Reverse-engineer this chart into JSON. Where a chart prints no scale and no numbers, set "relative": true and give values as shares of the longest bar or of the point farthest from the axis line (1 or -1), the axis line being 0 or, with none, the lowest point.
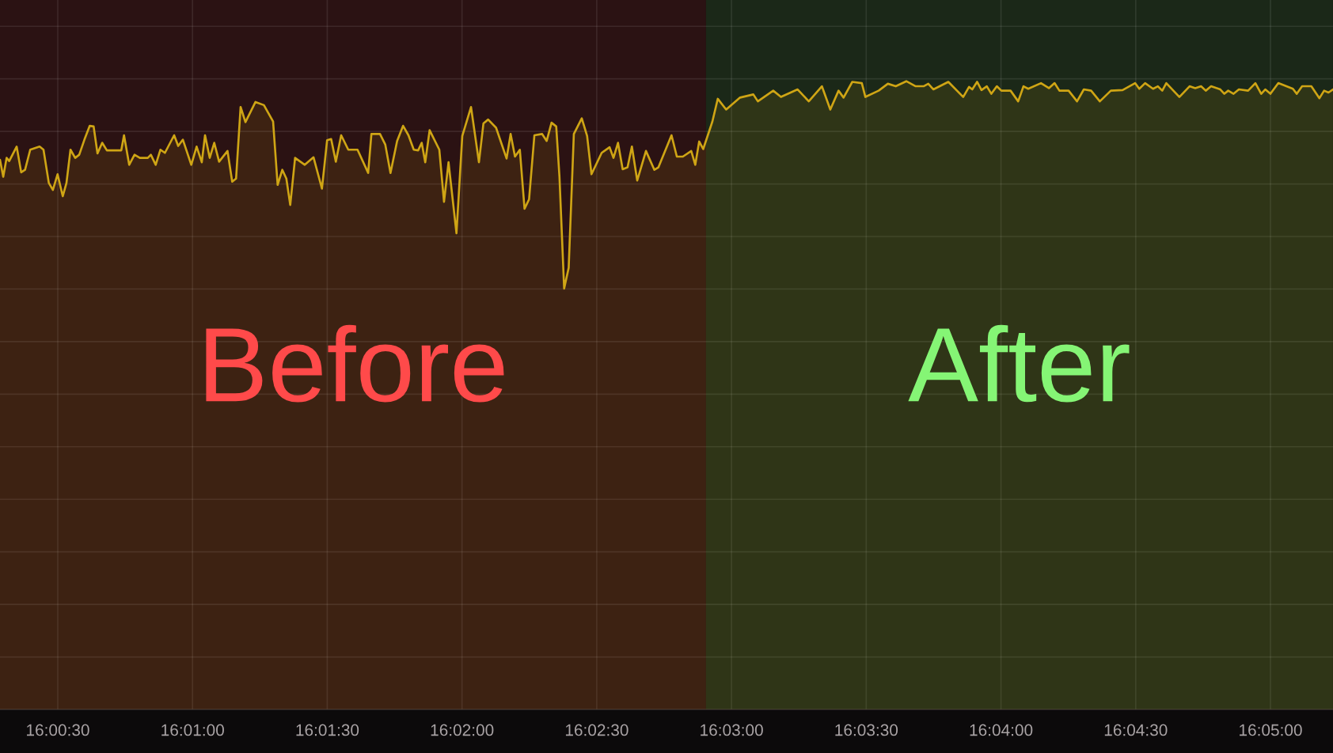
{
  "chart_data": {
    "type": "area",
    "relative": true,
    "xlim": [
      16.00476,
      16.0872
    ],
    "xticks": [
      {
        "value": 16.008333,
        "label": "16:00:30"
      },
      {
        "value": 16.016667,
        "label": "16:01:00"
      },
      {
        "value": 16.025,
        "label": "16:01:30"
      },
      {
        "value": 16.033333,
        "label": "16:02:00"
      },
      {
        "value": 16.041667,
        "label": "16:02:30"
      },
      {
        "value": 16.05,
        "label": "16:03:00"
      },
      {
        "value": 16.058333,
        "label": "16:03:30"
      },
      {
        "value": 16.066667,
        "label": "16:04:00"
      },
      {
        "value": 16.075,
        "label": "16:04:30"
      },
      {
        "value": 16.083333,
        "label": "16:05:00"
      }
    ],
    "grid": true,
    "bands": [
      {
        "axis": "x",
        "from": 16.00476,
        "to": 16.04842,
        "label": "Before",
        "color": "#ff4a4a"
      },
      {
        "axis": "x",
        "from": 16.04842,
        "to": 16.0872,
        "label": "After",
        "color": "#85f575"
      }
    ],
    "series": [
      {
        "color": "#cfa515",
        "x": [
          16.00476,
          16.00496,
          16.00517,
          16.00533,
          16.00579,
          16.00607,
          16.00631,
          16.00663,
          16.00721,
          16.00745,
          16.00778,
          16.00803,
          16.00832,
          16.00864,
          16.00887,
          16.00912,
          16.00941,
          16.00966,
          16.00998,
          16.01031,
          16.01055,
          16.01079,
          16.01108,
          16.01137,
          16.01226,
          16.01243,
          16.01275,
          16.01308,
          16.01341,
          16.0139,
          16.01409,
          16.01439,
          16.01468,
          16.01496,
          16.01553,
          16.01578,
          16.01607,
          16.01659,
          16.01692,
          16.01724,
          16.01744,
          16.01773,
          16.01801,
          16.01831,
          16.01883,
          16.01912,
          16.01936,
          16.01964,
          16.01994,
          16.02056,
          16.02108,
          16.02165,
          16.02193,
          16.02222,
          16.02247,
          16.02271,
          16.02301,
          16.02361,
          16.02415,
          16.02467,
          16.02499,
          16.02524,
          16.02553,
          16.02586,
          16.0263,
          16.02687,
          16.02753,
          16.02773,
          16.02826,
          16.02859,
          16.02891,
          16.02932,
          16.02969,
          16.03002,
          16.03035,
          16.03062,
          16.03084,
          16.03106,
          16.03133,
          16.03193,
          16.03222,
          16.0325,
          16.03299,
          16.03335,
          16.03389,
          16.03438,
          16.03466,
          16.03495,
          16.03544,
          16.03609,
          16.03634,
          16.03661,
          16.03691,
          16.0372,
          16.03748,
          16.03781,
          16.03829,
          16.03857,
          16.03887,
          16.03916,
          16.03936,
          16.03965,
          16.03993,
          16.04025,
          16.04074,
          16.04107,
          16.04134,
          16.04197,
          16.04246,
          16.0427,
          16.04298,
          16.04327,
          16.04357,
          16.04384,
          16.04417,
          16.04471,
          16.04523,
          16.04548,
          16.04629,
          16.04662,
          16.04699,
          16.04751,
          16.04776,
          16.048,
          16.04825,
          16.04882,
          16.04915,
          16.04967,
          16.05053,
          16.05135,
          16.05163,
          16.05258,
          16.05306,
          16.05409,
          16.05478,
          16.05559,
          16.05611,
          16.05662,
          16.05693,
          16.05747,
          16.05806,
          16.05828,
          16.0591,
          16.05967,
          16.06016,
          16.06081,
          16.06139,
          16.06188,
          16.06217,
          16.06249,
          16.06341,
          16.06433,
          16.06469,
          16.06489,
          16.06519,
          16.06546,
          16.06579,
          16.06607,
          16.06641,
          16.06669,
          16.06726,
          16.06773,
          16.06806,
          16.06835,
          16.06914,
          16.06963,
          16.06998,
          16.07028,
          16.07085,
          16.07137,
          16.07179,
          16.07224,
          16.07278,
          16.07346,
          16.07419,
          16.07496,
          16.07522,
          16.07558,
          16.07607,
          16.07637,
          16.07664,
          16.07689,
          16.0777,
          16.07833,
          16.07868,
          16.07904,
          16.07933,
          16.07966,
          16.08023,
          16.08048,
          16.08072,
          16.08105,
          16.08138,
          16.08195,
          16.0824,
          16.08276,
          16.08301,
          16.08333,
          16.08382,
          16.08472,
          16.08496,
          16.08529,
          16.08586,
          16.08636,
          16.08665,
          16.08692,
          16.0872
        ],
        "values": [
          0.875,
          0.848,
          0.878,
          0.873,
          0.896,
          0.855,
          0.859,
          0.891,
          0.896,
          0.891,
          0.838,
          0.827,
          0.852,
          0.817,
          0.838,
          0.891,
          0.878,
          0.883,
          0.907,
          0.929,
          0.928,
          0.885,
          0.902,
          0.89,
          0.89,
          0.914,
          0.867,
          0.883,
          0.878,
          0.878,
          0.883,
          0.867,
          0.891,
          0.886,
          0.914,
          0.897,
          0.907,
          0.867,
          0.896,
          0.871,
          0.914,
          0.878,
          0.902,
          0.872,
          0.889,
          0.84,
          0.845,
          0.959,
          0.935,
          0.967,
          0.962,
          0.936,
          0.835,
          0.859,
          0.845,
          0.803,
          0.878,
          0.867,
          0.879,
          0.829,
          0.906,
          0.908,
          0.872,
          0.914,
          0.891,
          0.891,
          0.854,
          0.916,
          0.916,
          0.899,
          0.854,
          0.905,
          0.929,
          0.914,
          0.891,
          0.89,
          0.902,
          0.871,
          0.922,
          0.891,
          0.808,
          0.871,
          0.758,
          0.913,
          0.959,
          0.871,
          0.933,
          0.939,
          0.926,
          0.877,
          0.916,
          0.88,
          0.891,
          0.797,
          0.812,
          0.914,
          0.916,
          0.905,
          0.934,
          0.928,
          0.848,
          0.67,
          0.703,
          0.916,
          0.941,
          0.913,
          0.852,
          0.886,
          0.895,
          0.878,
          0.902,
          0.86,
          0.863,
          0.896,
          0.842,
          0.889,
          0.859,
          0.863,
          0.914,
          0.88,
          0.88,
          0.889,
          0.867,
          0.904,
          0.892,
          0.936,
          0.972,
          0.955,
          0.974,
          0.979,
          0.968,
          0.985,
          0.975,
          0.987,
          0.968,
          0.992,
          0.955,
          0.985,
          0.974,
          0.999,
          0.997,
          0.975,
          0.985,
          0.996,
          0.992,
          1.0,
          0.992,
          0.992,
          0.996,
          0.987,
          0.999,
          0.975,
          0.991,
          0.987,
          0.999,
          0.986,
          0.992,
          0.98,
          0.992,
          0.985,
          0.985,
          0.968,
          0.992,
          0.988,
          0.997,
          0.989,
          0.997,
          0.985,
          0.985,
          0.968,
          0.987,
          0.985,
          0.968,
          0.985,
          0.986,
          0.997,
          0.988,
          0.997,
          0.988,
          0.992,
          0.985,
          0.997,
          0.975,
          0.992,
          0.989,
          0.992,
          0.985,
          0.992,
          0.987,
          0.98,
          0.985,
          0.98,
          0.987,
          0.985,
          0.997,
          0.98,
          0.987,
          0.98,
          0.997,
          0.988,
          0.98,
          0.992,
          0.992,
          0.973,
          0.985,
          0.982,
          0.987
        ]
      }
    ]
  }
}
